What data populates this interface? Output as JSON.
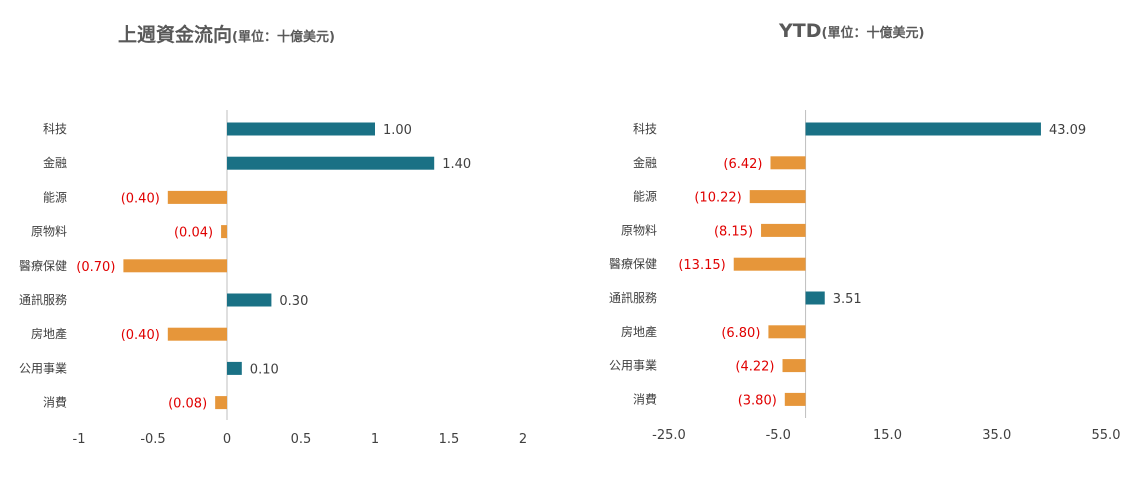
{
  "colors": {
    "positive": "#1a7185",
    "negative": "#e6963a",
    "negative_label": "#e00000",
    "axis": "#bfbfbf",
    "text": "#404040"
  },
  "chart_data": [
    {
      "type": "bar",
      "orientation": "horizontal",
      "title": "上週資金流向",
      "unit": "(單位：十億美元)",
      "categories": [
        "科技",
        "金融",
        "能源",
        "原物料",
        "醫療保健",
        "通訊服務",
        "房地產",
        "公用事業",
        "消費"
      ],
      "values": [
        1.0,
        1.4,
        -0.4,
        -0.04,
        -0.7,
        0.3,
        -0.4,
        0.1,
        -0.08
      ],
      "value_labels": [
        "1.00",
        "1.40",
        "(0.40)",
        "(0.04)",
        "(0.70)",
        "0.30",
        "(0.40)",
        "0.10",
        "(0.08)"
      ],
      "xlim": [
        -1,
        2
      ],
      "xticks": [
        -1,
        -0.5,
        0,
        0.5,
        1,
        1.5,
        2
      ],
      "xtick_labels": [
        "-1",
        "-0.5",
        "0",
        "0.5",
        "1",
        "1.5",
        "2"
      ],
      "grid": false,
      "legend": "none"
    },
    {
      "type": "bar",
      "orientation": "horizontal",
      "title": "YTD",
      "unit": "(單位：十億美元)",
      "categories": [
        "科技",
        "金融",
        "能源",
        "原物料",
        "醫療保健",
        "通訊服務",
        "房地產",
        "公用事業",
        "消費"
      ],
      "values": [
        43.09,
        -6.42,
        -10.22,
        -8.15,
        -13.15,
        3.51,
        -6.8,
        -4.22,
        -3.8
      ],
      "value_labels": [
        "43.09",
        "(6.42)",
        "(10.22)",
        "(8.15)",
        "(13.15)",
        "3.51",
        "(6.80)",
        "(4.22)",
        "(3.80)"
      ],
      "xlim": [
        -25,
        55
      ],
      "xticks": [
        -25,
        -5,
        15,
        35,
        55
      ],
      "xtick_labels": [
        "-25.0",
        "-5.0",
        "15.0",
        "35.0",
        "55.0"
      ],
      "grid": false,
      "legend": "none"
    }
  ]
}
